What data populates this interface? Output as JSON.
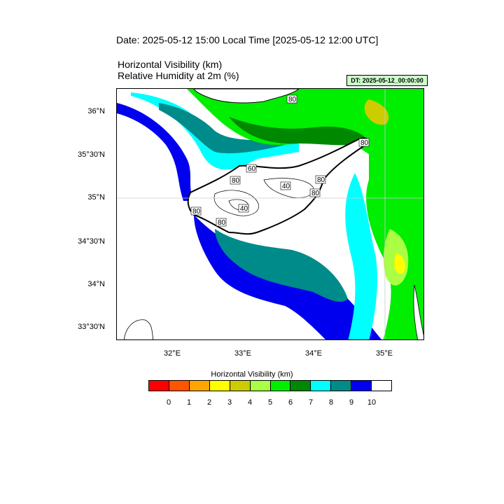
{
  "header": {
    "date_line": "Date: 2025-05-12  15:00 Local Time [2025-05-12  12:00 UTC]",
    "title_line_1": "Horizontal Visibility   (km)",
    "title_line_2": "Relative Humidity at 2m   (%)",
    "dt_badge": "DT: 2025-05-12_00:00:00"
  },
  "map": {
    "lat_labels": [
      "36°N",
      "35°30'N",
      "35°N",
      "34°30'N",
      "34°N",
      "33°30'N"
    ],
    "lon_labels": [
      "32°E",
      "33°E",
      "34°E",
      "35°E"
    ],
    "contour_labels": [
      "80",
      "80",
      "80",
      "80",
      "80",
      "40",
      "80",
      "40",
      "80",
      "60"
    ],
    "shading_colors": {
      "open_sea_far": "#0000ee",
      "sea_mid": "#008b8b",
      "sea_light": "#00ffff",
      "near_coast_green": "#00ee00",
      "dark_green": "#008800",
      "land_white": "#ffffff",
      "yellow_green": "#aaff44",
      "olive": "#cccc00",
      "yellow": "#ffff00",
      "orange": "#ffa500"
    }
  },
  "colorbar": {
    "title": "Horizontal Visibility  (km)",
    "colors": [
      "#ff0000",
      "#ff5500",
      "#ffa500",
      "#ffff00",
      "#cccc00",
      "#aaff44",
      "#00ee00",
      "#008800",
      "#00ffff",
      "#008b8b",
      "#0000ee",
      "#ffffff"
    ],
    "tick_labels": [
      "0",
      "1",
      "2",
      "3",
      "4",
      "5",
      "6",
      "7",
      "8",
      "9",
      "10"
    ]
  }
}
